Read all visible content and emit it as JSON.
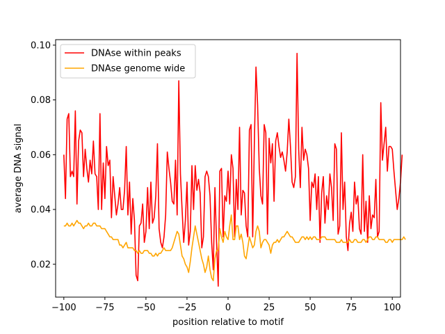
{
  "chart_data": {
    "type": "line",
    "title": "",
    "xlabel": "position relative to motif",
    "ylabel": "average DNA signal",
    "xlim": [
      -105,
      105
    ],
    "ylim": [
      0.008,
      0.102
    ],
    "xticks": [
      -100,
      -75,
      -50,
      -25,
      0,
      25,
      50,
      75,
      100
    ],
    "xtick_labels": [
      "−100",
      "−75",
      "−50",
      "−25",
      "0",
      "25",
      "50",
      "75",
      "100"
    ],
    "yticks": [
      0.02,
      0.04,
      0.06,
      0.08,
      0.1
    ],
    "ytick_labels": [
      "0.02",
      "0.04",
      "0.06",
      "0.08",
      "0.10"
    ],
    "grid": false,
    "legend_position": "top-left",
    "x_start": -100,
    "x_step": 1,
    "series": [
      {
        "name": "DNAse within peaks",
        "color": "#ff0000",
        "values": [
          0.06,
          0.044,
          0.073,
          0.075,
          0.052,
          0.054,
          0.052,
          0.076,
          0.042,
          0.065,
          0.069,
          0.068,
          0.052,
          0.062,
          0.055,
          0.05,
          0.058,
          0.053,
          0.065,
          0.053,
          0.052,
          0.04,
          0.075,
          0.04,
          0.057,
          0.044,
          0.063,
          0.056,
          0.058,
          0.037,
          0.052,
          0.045,
          0.038,
          0.042,
          0.048,
          0.04,
          0.04,
          0.047,
          0.063,
          0.038,
          0.05,
          0.031,
          0.044,
          0.036,
          0.016,
          0.014,
          0.034,
          0.035,
          0.042,
          0.028,
          0.032,
          0.048,
          0.033,
          0.05,
          0.035,
          0.037,
          0.045,
          0.064,
          0.033,
          0.028,
          0.026,
          0.03,
          0.038,
          0.061,
          0.055,
          0.05,
          0.043,
          0.042,
          0.058,
          0.038,
          0.087,
          0.053,
          0.04,
          0.028,
          0.036,
          0.05,
          0.027,
          0.032,
          0.056,
          0.04,
          0.056,
          0.047,
          0.051,
          0.046,
          0.026,
          0.03,
          0.052,
          0.054,
          0.052,
          0.045,
          0.028,
          0.018,
          0.048,
          0.028,
          0.012,
          0.054,
          0.055,
          0.03,
          0.045,
          0.043,
          0.054,
          0.042,
          0.06,
          0.055,
          0.03,
          0.051,
          0.04,
          0.07,
          0.038,
          0.047,
          0.046,
          0.034,
          0.03,
          0.069,
          0.071,
          0.03,
          0.064,
          0.092,
          0.078,
          0.055,
          0.045,
          0.042,
          0.071,
          0.068,
          0.031,
          0.066,
          0.057,
          0.064,
          0.043,
          0.065,
          0.068,
          0.063,
          0.059,
          0.061,
          0.058,
          0.054,
          0.061,
          0.073,
          0.063,
          0.05,
          0.048,
          0.052,
          0.097,
          0.062,
          0.048,
          0.07,
          0.058,
          0.062,
          0.06,
          0.055,
          0.036,
          0.05,
          0.048,
          0.053,
          0.04,
          0.052,
          0.028,
          0.046,
          0.052,
          0.035,
          0.045,
          0.04,
          0.053,
          0.048,
          0.036,
          0.064,
          0.062,
          0.031,
          0.034,
          0.068,
          0.04,
          0.05,
          0.03,
          0.025,
          0.035,
          0.039,
          0.032,
          0.05,
          0.042,
          0.045,
          0.033,
          0.031,
          0.06,
          0.032,
          0.043,
          0.028,
          0.045,
          0.033,
          0.038,
          0.037,
          0.051,
          0.03,
          0.032,
          0.079,
          0.058,
          0.064,
          0.07,
          0.054,
          0.063,
          0.063,
          0.062,
          0.054,
          0.047,
          0.04,
          0.044,
          0.05,
          0.06
        ],
        "_note": ""
      },
      {
        "name": "DNAse genome wide",
        "color": "#ffa500",
        "values": [
          0.034,
          0.034,
          0.035,
          0.034,
          0.034,
          0.035,
          0.034,
          0.035,
          0.036,
          0.035,
          0.035,
          0.034,
          0.033,
          0.034,
          0.034,
          0.035,
          0.034,
          0.034,
          0.035,
          0.035,
          0.034,
          0.034,
          0.034,
          0.033,
          0.033,
          0.033,
          0.032,
          0.031,
          0.03,
          0.03,
          0.029,
          0.029,
          0.029,
          0.029,
          0.027,
          0.027,
          0.026,
          0.027,
          0.028,
          0.026,
          0.026,
          0.026,
          0.026,
          0.025,
          0.025,
          0.024,
          0.025,
          0.024,
          0.024,
          0.025,
          0.025,
          0.025,
          0.024,
          0.024,
          0.023,
          0.023,
          0.024,
          0.023,
          0.024,
          0.024,
          0.025,
          0.026,
          0.025,
          0.025,
          0.025,
          0.025,
          0.026,
          0.028,
          0.03,
          0.032,
          0.031,
          0.027,
          0.023,
          0.022,
          0.02,
          0.019,
          0.017,
          0.021,
          0.026,
          0.03,
          0.034,
          0.031,
          0.028,
          0.025,
          0.022,
          0.02,
          0.017,
          0.019,
          0.023,
          0.018,
          0.015,
          0.014,
          0.022,
          0.025,
          0.025,
          0.033,
          0.03,
          0.028,
          0.032,
          0.03,
          0.029,
          0.034,
          0.038,
          0.029,
          0.029,
          0.034,
          0.034,
          0.029,
          0.031,
          0.028,
          0.023,
          0.022,
          0.026,
          0.03,
          0.028,
          0.026,
          0.027,
          0.032,
          0.034,
          0.032,
          0.026,
          0.028,
          0.029,
          0.029,
          0.028,
          0.027,
          0.024,
          0.027,
          0.028,
          0.028,
          0.029,
          0.028,
          0.029,
          0.03,
          0.03,
          0.031,
          0.032,
          0.031,
          0.03,
          0.03,
          0.029,
          0.028,
          0.028,
          0.028,
          0.029,
          0.03,
          0.03,
          0.029,
          0.03,
          0.029,
          0.03,
          0.029,
          0.03,
          0.03,
          0.029,
          0.029,
          0.029,
          0.03,
          0.03,
          0.03,
          0.029,
          0.029,
          0.029,
          0.029,
          0.029,
          0.029,
          0.028,
          0.028,
          0.028,
          0.029,
          0.028,
          0.028,
          0.028,
          0.028,
          0.029,
          0.028,
          0.028,
          0.029,
          0.029,
          0.028,
          0.028,
          0.028,
          0.029,
          0.029,
          0.028,
          0.029,
          0.03,
          0.03,
          0.029,
          0.029,
          0.03,
          0.03,
          0.029,
          0.029,
          0.029,
          0.029,
          0.028,
          0.028,
          0.029,
          0.029,
          0.028,
          0.029,
          0.029,
          0.029,
          0.029,
          0.029,
          0.029,
          0.03,
          0.029
        ],
        "_note": ""
      }
    ]
  }
}
